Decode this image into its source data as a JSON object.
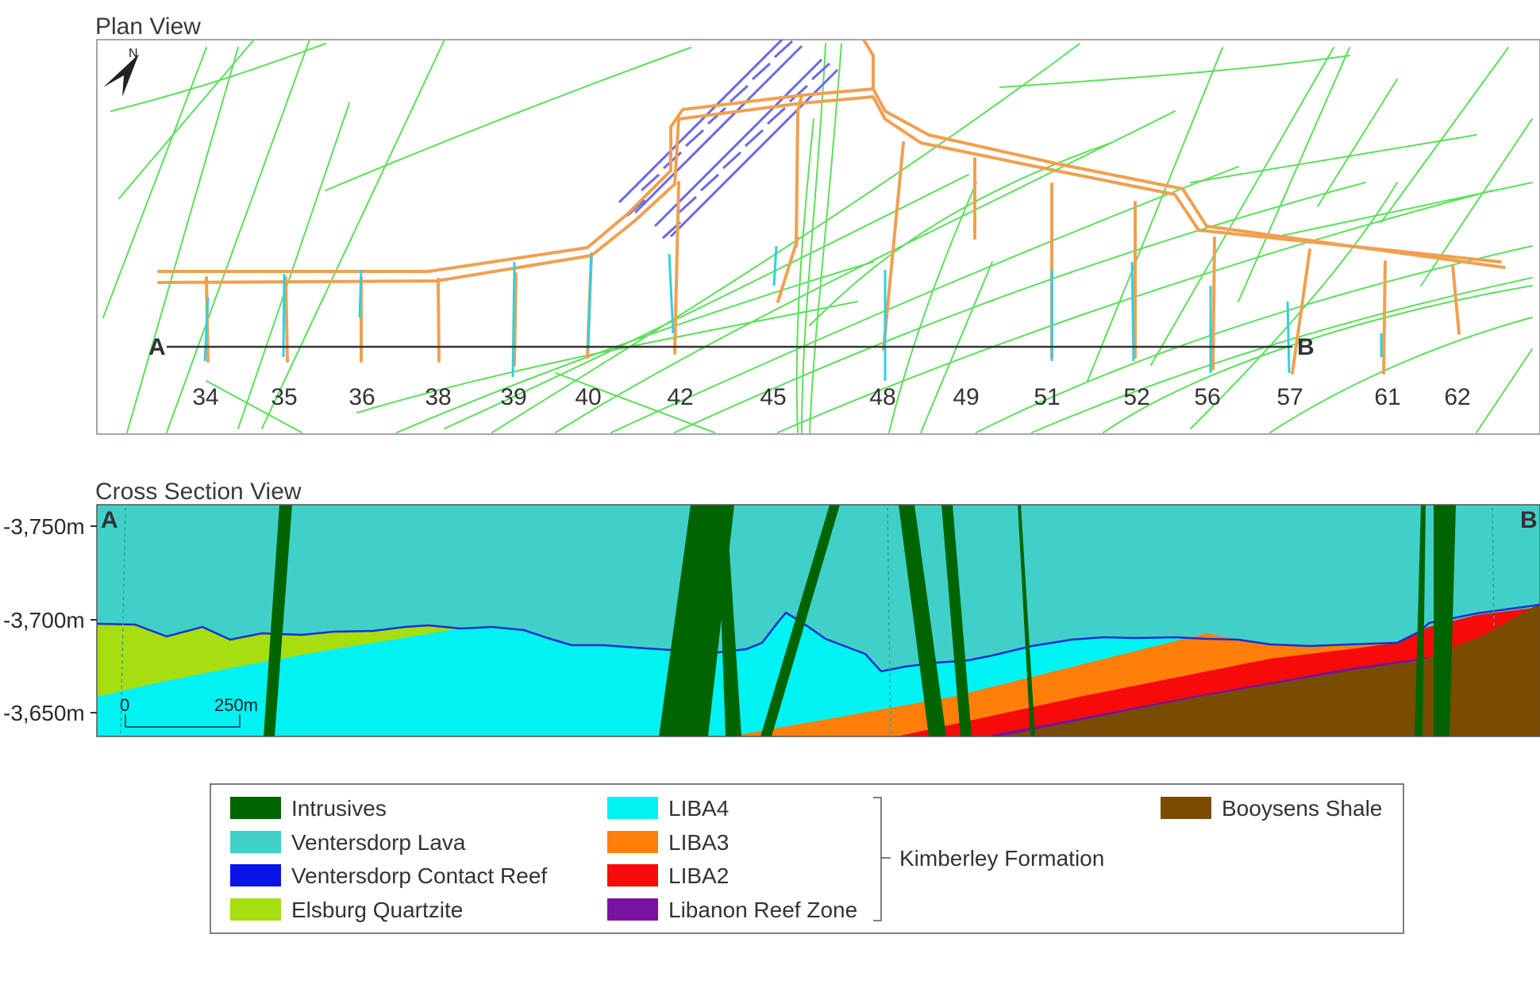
{
  "plan_view": {
    "title": "Plan View",
    "north_label": "N",
    "section_start": "A",
    "section_end": "B",
    "levels": [
      "34",
      "35",
      "36",
      "38",
      "39",
      "40",
      "42",
      "45",
      "48",
      "49",
      "51",
      "52",
      "56",
      "57",
      "61",
      "62"
    ]
  },
  "cross_section": {
    "title": "Cross Section View",
    "label_a": "A",
    "label_b": "B",
    "depth_labels": [
      "-3,750m",
      "-3,700m",
      "-3,650m"
    ],
    "scale_zero": "0",
    "scale_end": "250m"
  },
  "legend": {
    "items": [
      {
        "label": "Intrusives",
        "color": "#006400"
      },
      {
        "label": "Ventersdorp Lava",
        "color": "#40D0C8"
      },
      {
        "label": "Ventersdorp Contact Reef",
        "color": "#0A14E6"
      },
      {
        "label": "Elsburg Quartzite",
        "color": "#A6DE10"
      },
      {
        "label": "LIBA4",
        "color": "#00F2F2"
      },
      {
        "label": "LIBA3",
        "color": "#FF7F0A"
      },
      {
        "label": "LIBA2",
        "color": "#F60A0A"
      },
      {
        "label": "Libanon Reef Zone",
        "color": "#7A12A0"
      },
      {
        "label": "Booysens Shale",
        "color": "#7A4C00"
      }
    ],
    "group_label": "Kimberley Formation"
  },
  "colors": {
    "workings": "#F0A050",
    "structures": "#5AE05A",
    "shaft": "#6A6AE6",
    "section_line": "#333333",
    "cross_section_blue_line": "#1C2FD0"
  }
}
